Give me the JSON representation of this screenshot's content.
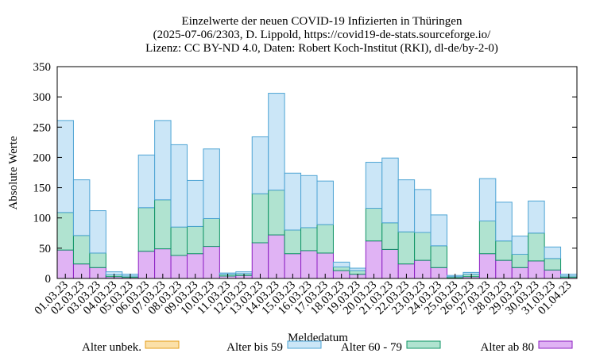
{
  "chart_data": {
    "type": "bar",
    "stacked": true,
    "title": [
      "Einzelwerte der neuen COVID-19 Infizierten in Thüringen",
      "(2025-07-06/2303, D. Lippold, https://covid19-de-stats.sourceforge.io/",
      "Lizenz: CC BY-ND 4.0, Daten: Robert Koch-Institut (RKI), dl-de/by-2-0)"
    ],
    "xlabel": "Meldedatum",
    "ylabel": "Absolute Werte",
    "ylim": [
      0,
      350
    ],
    "yticks": [
      0,
      50,
      100,
      150,
      200,
      250,
      300,
      350
    ],
    "grid": false,
    "legend_position": "bottom",
    "categories": [
      "01.03.23",
      "02.03.23",
      "03.03.23",
      "04.03.23",
      "05.03.23",
      "06.03.23",
      "07.03.23",
      "08.03.23",
      "09.03.23",
      "10.03.23",
      "11.03.23",
      "12.03.23",
      "13.03.23",
      "14.03.23",
      "15.03.23",
      "16.03.23",
      "17.03.23",
      "18.03.23",
      "19.03.23",
      "20.03.23",
      "21.03.23",
      "22.03.23",
      "23.03.23",
      "24.03.23",
      "25.03.23",
      "26.03.23",
      "27.03.23",
      "28.03.23",
      "29.03.23",
      "30.03.23",
      "31.03.23",
      "01.04.23"
    ],
    "series": [
      {
        "name": "Alter ab 80",
        "fill": "#e0b3f4",
        "stroke": "#8c1fc2",
        "values": [
          47,
          24,
          18,
          3,
          2,
          45,
          49,
          38,
          41,
          53,
          4,
          5,
          59,
          72,
          41,
          46,
          42,
          13,
          7,
          62,
          48,
          24,
          30,
          18,
          1,
          3,
          41,
          30,
          18,
          29,
          14,
          2
        ]
      },
      {
        "name": "Alter 60 - 79",
        "fill": "#b0e3d0",
        "stroke": "#0f9465",
        "values": [
          62,
          47,
          24,
          3,
          2,
          72,
          81,
          47,
          45,
          46,
          3,
          3,
          81,
          74,
          39,
          38,
          47,
          6,
          6,
          54,
          44,
          53,
          46,
          36,
          2,
          4,
          54,
          32,
          22,
          46,
          19,
          2
        ]
      },
      {
        "name": "Alter bis 59",
        "fill": "#cbe6f7",
        "stroke": "#4ea4d4",
        "values": [
          152,
          92,
          70,
          5,
          3,
          87,
          131,
          136,
          76,
          115,
          2,
          3,
          94,
          160,
          94,
          86,
          72,
          8,
          4,
          76,
          107,
          86,
          71,
          51,
          2,
          3,
          70,
          64,
          30,
          53,
          19,
          3
        ]
      },
      {
        "name": "Alter unbek.",
        "fill": "#fbe0a8",
        "stroke": "#e59e1a",
        "values": [
          0,
          0,
          0,
          0,
          0,
          0,
          0,
          0,
          0,
          0,
          0,
          0,
          0,
          0,
          0,
          0,
          0,
          0,
          0,
          0,
          0,
          0,
          0,
          0,
          0,
          0,
          0,
          0,
          0,
          0,
          0,
          0
        ]
      }
    ],
    "legend_order": [
      "Alter unbek.",
      "Alter bis 59",
      "Alter 60 - 79",
      "Alter ab 80"
    ]
  }
}
